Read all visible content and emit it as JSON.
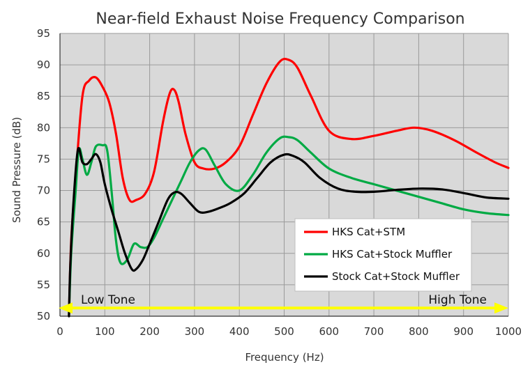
{
  "chart_data": {
    "type": "line",
    "title": "Near-field Exhaust Noise Frequency Comparison",
    "xlabel": "Frequency (Hz)",
    "ylabel": "Sound Pressure (dB)",
    "xlim": [
      0,
      1000
    ],
    "ylim": [
      50,
      95
    ],
    "xticks": [
      0,
      100,
      200,
      300,
      400,
      500,
      600,
      700,
      800,
      900,
      1000
    ],
    "yticks": [
      50,
      55,
      60,
      65,
      70,
      75,
      80,
      85,
      90,
      95
    ],
    "grid": true,
    "plot_background": "#d9d9d9",
    "legend_position": "lower-right",
    "annotations": {
      "low_tone": "Low Tone",
      "high_tone": "High Tone",
      "arrow_color": "#ffff00",
      "arrow_level_db": 51.3
    },
    "series": [
      {
        "name": "HKS Cat+STM",
        "color": "#ff0000",
        "x": [
          20,
          25,
          35,
          50,
          65,
          80,
          95,
          110,
          125,
          140,
          155,
          170,
          190,
          210,
          230,
          245,
          255,
          265,
          280,
          300,
          320,
          345,
          370,
          400,
          430,
          460,
          490,
          510,
          530,
          560,
          600,
          650,
          700,
          750,
          790,
          830,
          880,
          930,
          970,
          1000
        ],
        "values": [
          50,
          62,
          72,
          85,
          87.5,
          88,
          86.5,
          84,
          79,
          72,
          68.5,
          68.5,
          69.5,
          73,
          81,
          85.5,
          86,
          84,
          79,
          74.5,
          73.5,
          73.5,
          74.5,
          77,
          82,
          87,
          90.5,
          90.8,
          89.5,
          85,
          79.5,
          78.2,
          78.7,
          79.5,
          80,
          79.5,
          78,
          76,
          74.5,
          73.6
        ]
      },
      {
        "name": "HKS Cat+Stock Muffler",
        "color": "#00aa44",
        "x": [
          20,
          25,
          35,
          42,
          50,
          60,
          70,
          80,
          95,
          105,
          115,
          125,
          135,
          150,
          165,
          180,
          195,
          210,
          230,
          250,
          270,
          290,
          310,
          325,
          345,
          370,
          400,
          430,
          460,
          490,
          510,
          530,
          560,
          600,
          650,
          700,
          750,
          800,
          850,
          900,
          950,
          1000
        ],
        "values": [
          50,
          60,
          70,
          76.5,
          75,
          72.5,
          74.5,
          77,
          77.2,
          76.5,
          70,
          62,
          58.5,
          59,
          61.5,
          61,
          61,
          62.5,
          65.5,
          68.5,
          71.5,
          74.5,
          76.4,
          76.5,
          74,
          71,
          70,
          72.5,
          76,
          78.3,
          78.5,
          78,
          76,
          73.5,
          72,
          71,
          70,
          69,
          68,
          67,
          66.4,
          66.1
        ]
      },
      {
        "name": "Stock Cat+Stock Muffler",
        "color": "#000000",
        "x": [
          20,
          23,
          30,
          40,
          50,
          60,
          70,
          80,
          90,
          100,
          115,
          130,
          145,
          160,
          170,
          185,
          200,
          220,
          240,
          255,
          270,
          290,
          310,
          330,
          355,
          380,
          410,
          440,
          470,
          500,
          520,
          545,
          580,
          620,
          660,
          700,
          750,
          800,
          850,
          900,
          950,
          1000
        ],
        "values": [
          50,
          58,
          68,
          76.5,
          74.5,
          74.2,
          75,
          75.8,
          74.5,
          71,
          67,
          63.5,
          60,
          57.5,
          57.5,
          59,
          61.5,
          65,
          68.5,
          69.7,
          69.5,
          68,
          66.6,
          66.6,
          67.2,
          68,
          69.5,
          72,
          74.5,
          75.7,
          75.5,
          74.5,
          72,
          70.3,
          69.8,
          69.8,
          70.1,
          70.3,
          70.2,
          69.6,
          68.9,
          68.7
        ]
      }
    ]
  }
}
